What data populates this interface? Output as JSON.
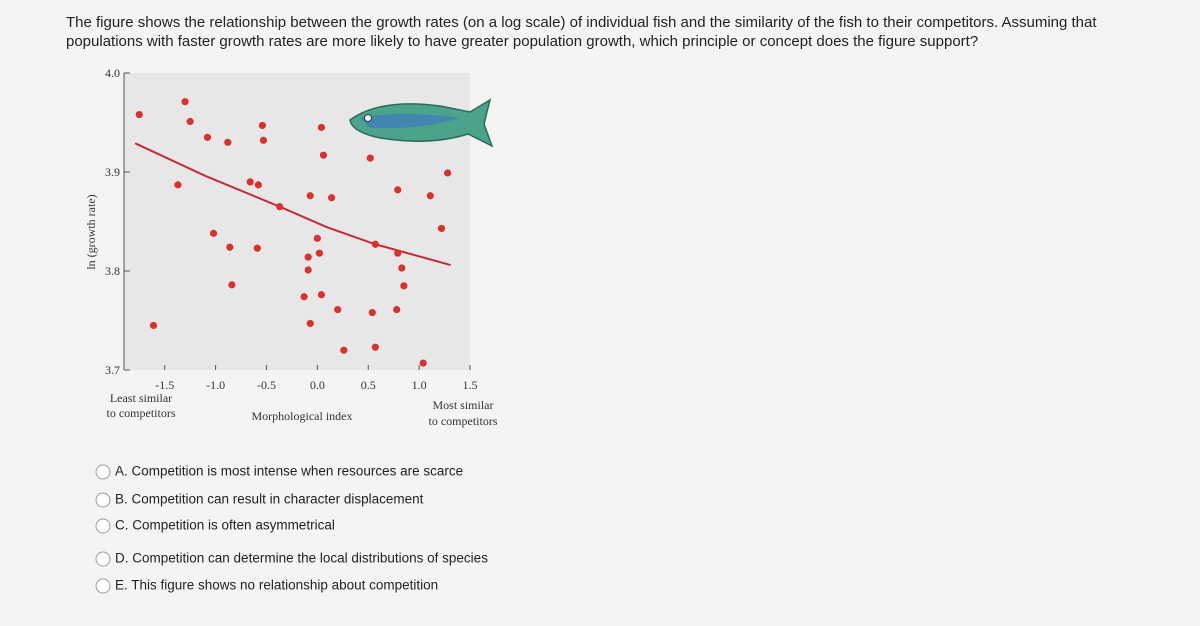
{
  "question": "The figure shows the relationship between the growth rates (on a log scale) of individual fish and the similarity of the fish to their competitors. Assuming that populations with faster growth rates are more likely to have greater population growth, which principle or concept does the figure support?",
  "chart_data": {
    "type": "scatter",
    "x_label": "Morphological index",
    "y_label": "ln (growth rate)",
    "annotations": [
      "Least similar",
      "to competitors",
      "Most similar",
      "to competitors"
    ],
    "color": "#d9312b",
    "x": [
      -1.75,
      -1.3,
      -1.25,
      -1.08,
      -0.88,
      -0.54,
      -0.53,
      0.04,
      0.06,
      0.52,
      1.28,
      -1.37,
      -0.66,
      -0.58,
      -0.37,
      -0.07,
      0.14,
      0.79,
      1.11,
      -1.02,
      -0.86,
      -0.59,
      0.0,
      0.02,
      -0.09,
      -0.09,
      0.57,
      0.83,
      0.79,
      1.22,
      -0.84,
      -0.13,
      0.04,
      0.2,
      0.54,
      0.78,
      0.85,
      -1.61,
      -0.07,
      0.26,
      0.57,
      1.04
    ],
    "values": [
      3.958,
      3.971,
      3.951,
      3.935,
      3.93,
      3.947,
      3.932,
      3.945,
      3.917,
      3.914,
      3.899,
      3.887,
      3.89,
      3.887,
      3.865,
      3.876,
      3.874,
      3.882,
      3.876,
      3.838,
      3.824,
      3.823,
      3.833,
      3.818,
      3.814,
      3.801,
      3.827,
      3.803,
      3.818,
      3.843,
      3.786,
      3.774,
      3.776,
      3.761,
      3.758,
      3.761,
      3.785,
      3.745,
      3.747,
      3.72,
      3.723,
      3.707
    ],
    "trend_line": {
      "color": "#c42a3a",
      "x": [
        -1.79,
        -1.1,
        -0.37,
        0.1,
        0.57,
        1.31
      ],
      "values": [
        3.929,
        3.896,
        3.865,
        3.844,
        3.827,
        3.806
      ]
    },
    "xlim": [
      -1.9,
      1.5
    ],
    "ylim": [
      3.7,
      4.0
    ],
    "xticks": [
      -1.5,
      {
        "value": -1,
        "label": "-1.0"
      },
      -0.5,
      {
        "value": 0,
        "label": "0.0"
      },
      0.5,
      {
        "value": 1,
        "label": "1.0"
      },
      1.5
    ],
    "yticks": [
      {
        "value": 4,
        "label": "4.0"
      },
      3.9,
      3.8,
      3.7
    ]
  },
  "options": [
    "A. Competition is most intense when resources are scarce",
    "B. Competition can result in character displacement",
    "C. Competition is often asymmetrical",
    "D. Competition can determine the local distributions of species",
    "E. This figure shows no relationship about competition"
  ]
}
